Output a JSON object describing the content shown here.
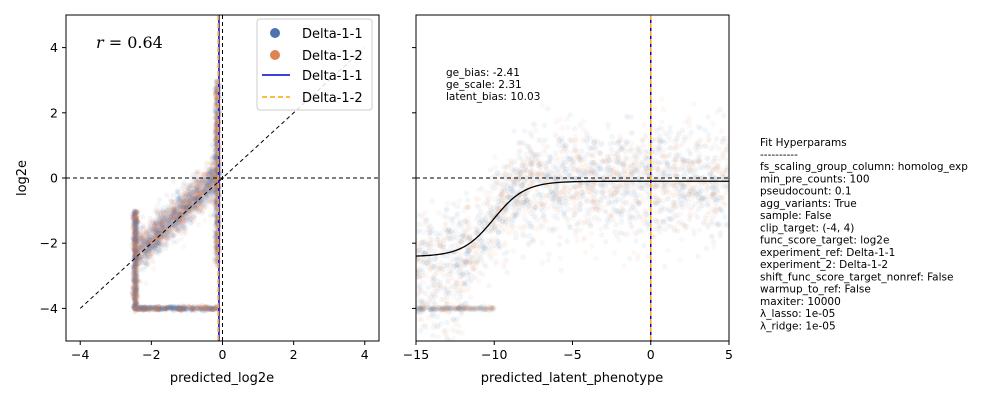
{
  "colors": {
    "delta_1_1": "#4c72b0",
    "delta_1_2": "#dd8452",
    "line_1_1": "#0000cc",
    "line_1_2": "#ffa500",
    "fit_curve": "#000000",
    "cloud": "#8c84a8"
  },
  "chart_data": [
    {
      "type": "scatter",
      "xlabel": "predicted_log2e",
      "ylabel": "log2e",
      "xlim": [
        -4.4,
        4.4
      ],
      "ylim": [
        -5,
        5
      ],
      "xticks": [
        -4,
        -2,
        0,
        2,
        4
      ],
      "yticks": [
        -4,
        -2,
        0,
        2,
        4
      ],
      "xtick_labels": [
        "−4",
        "−2",
        "0",
        "2",
        "4"
      ],
      "ytick_labels": [
        "−4",
        "−2",
        "0",
        "2",
        "4"
      ],
      "annotation": "r = 0.64",
      "legend_position": "upper right",
      "legend": [
        {
          "label": "Delta-1-1",
          "kind": "marker",
          "color": "#4c72b0"
        },
        {
          "label": "Delta-1-2",
          "kind": "marker",
          "color": "#dd8452"
        },
        {
          "label": "Delta-1-1",
          "kind": "solid-line",
          "color": "#0000cc"
        },
        {
          "label": "Delta-1-2",
          "kind": "dashed-line",
          "color": "#ffa500"
        }
      ],
      "reference_lines": {
        "horizontal_y": 0,
        "vertical_x": 0,
        "diagonal": [
          [
            -4,
            -4
          ],
          [
            4,
            4
          ]
        ]
      },
      "vlines": [
        {
          "series": "Delta-1-1",
          "x": -0.1
        },
        {
          "series": "Delta-1-2",
          "x": -0.12
        }
      ],
      "point_cloud": {
        "series": [
          {
            "name": "Delta-1-1",
            "color": "#4c72b0"
          },
          {
            "name": "Delta-1-2",
            "color": "#dd8452"
          }
        ],
        "trend_x": [
          -2.4,
          -0.1
        ],
        "trend_y": [
          -2.3,
          0.1
        ],
        "floor_y": -4,
        "dense_columns_x": [
          -2.45,
          -0.15
        ]
      }
    },
    {
      "type": "scatter",
      "xlabel": "predicted_latent_phenotype",
      "ylabel": "",
      "xlim": [
        -15,
        5
      ],
      "ylim": [
        -5,
        5
      ],
      "xticks": [
        -15,
        -10,
        -5,
        0,
        5
      ],
      "yticks": [
        -4,
        -2,
        0,
        2,
        4
      ],
      "xtick_labels": [
        "−15",
        "−10",
        "−5",
        "0",
        "5"
      ],
      "fit_params_text": [
        "ge_bias: -2.41",
        "ge_scale: 2.31",
        "latent_bias: 10.03"
      ],
      "fit_curve": {
        "ge_bias": -2.41,
        "ge_scale": 2.31,
        "latent_bias": 10.03
      },
      "reference_lines": {
        "horizontal_y": 0
      },
      "vlines": [
        {
          "series": "Delta-1-1",
          "x": 0
        },
        {
          "series": "Delta-1-2",
          "x": 0
        }
      ]
    }
  ],
  "hyperparams": {
    "title": "Fit Hyperparams",
    "separator": "----------",
    "lines": [
      "fs_scaling_group_column: homolog_exp",
      "min_pre_counts: 100",
      "pseudocount: 0.1",
      "agg_variants: True",
      "sample: False",
      "clip_target: (-4, 4)",
      "func_score_target: log2e",
      "experiment_ref: Delta-1-1",
      "experiment_2: Delta-1-2",
      "shift_func_score_target_nonref: False",
      "warmup_to_ref: False",
      "maxiter: 10000",
      "λ_lasso: 1e-05",
      "λ_ridge: 1e-05"
    ]
  }
}
